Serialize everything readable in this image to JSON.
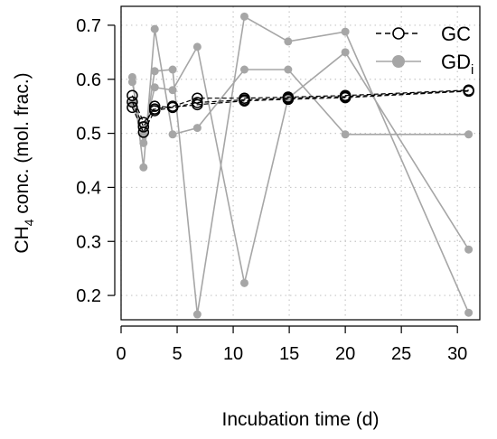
{
  "chart_data": {
    "type": "scatter",
    "xlabel": "Incubation time (d)",
    "ylabel_main": "CH",
    "ylabel_sub": "4",
    "ylabel_rest": " conc. (mol. frac.)",
    "xlim": [
      0,
      32
    ],
    "ylim": [
      0.155,
      0.735
    ],
    "x_ticks": [
      0,
      5,
      10,
      15,
      20,
      25,
      30
    ],
    "y_ticks": [
      0.2,
      0.3,
      0.4,
      0.5,
      0.6,
      0.7
    ],
    "grid": true,
    "legend_position": "top-right",
    "legend": [
      {
        "label_main": "GC",
        "label_sub": ""
      },
      {
        "label_main": "GD",
        "label_sub": "i"
      }
    ],
    "colors": {
      "gc": "#000000",
      "gd": "#a6a6a6",
      "grid": "#c8c8c8"
    },
    "gc_series": [
      {
        "x": [
          1,
          2,
          3,
          4.6,
          6.8,
          11,
          14.9,
          20,
          31
        ],
        "y": [
          0.57,
          0.52,
          0.545,
          0.55,
          0.565,
          0.565,
          0.567,
          0.57,
          0.58
        ]
      },
      {
        "x": [
          1,
          2,
          3,
          4.6,
          6.8,
          11,
          14.9,
          20,
          31
        ],
        "y": [
          0.558,
          0.512,
          0.55,
          0.548,
          0.557,
          0.562,
          0.565,
          0.568,
          0.579
        ]
      },
      {
        "x": [
          1,
          2,
          3,
          4.6,
          6.8,
          11,
          14.9,
          20,
          31
        ],
        "y": [
          0.548,
          0.502,
          0.542,
          0.548,
          0.553,
          0.56,
          0.563,
          0.566,
          0.578
        ]
      }
    ],
    "gd_series": [
      {
        "x": [
          1,
          2,
          3,
          4.6,
          6.8,
          11,
          14.9,
          20,
          31
        ],
        "y": [
          0.604,
          0.437,
          0.693,
          0.498,
          0.51,
          0.618,
          0.618,
          0.498,
          0.498
        ]
      },
      {
        "x": [
          1,
          2,
          3,
          4.6,
          6.8,
          11,
          14.9,
          20,
          31
        ],
        "y": [
          0.595,
          0.482,
          0.615,
          0.618,
          0.165,
          0.716,
          0.67,
          0.688,
          0.168
        ]
      },
      {
        "x": [
          1,
          2,
          3,
          4.6,
          6.8,
          11,
          14.9,
          20,
          31
        ],
        "y": [
          0.555,
          0.498,
          0.585,
          0.58,
          0.66,
          0.223,
          0.565,
          0.65,
          0.285
        ]
      }
    ]
  }
}
